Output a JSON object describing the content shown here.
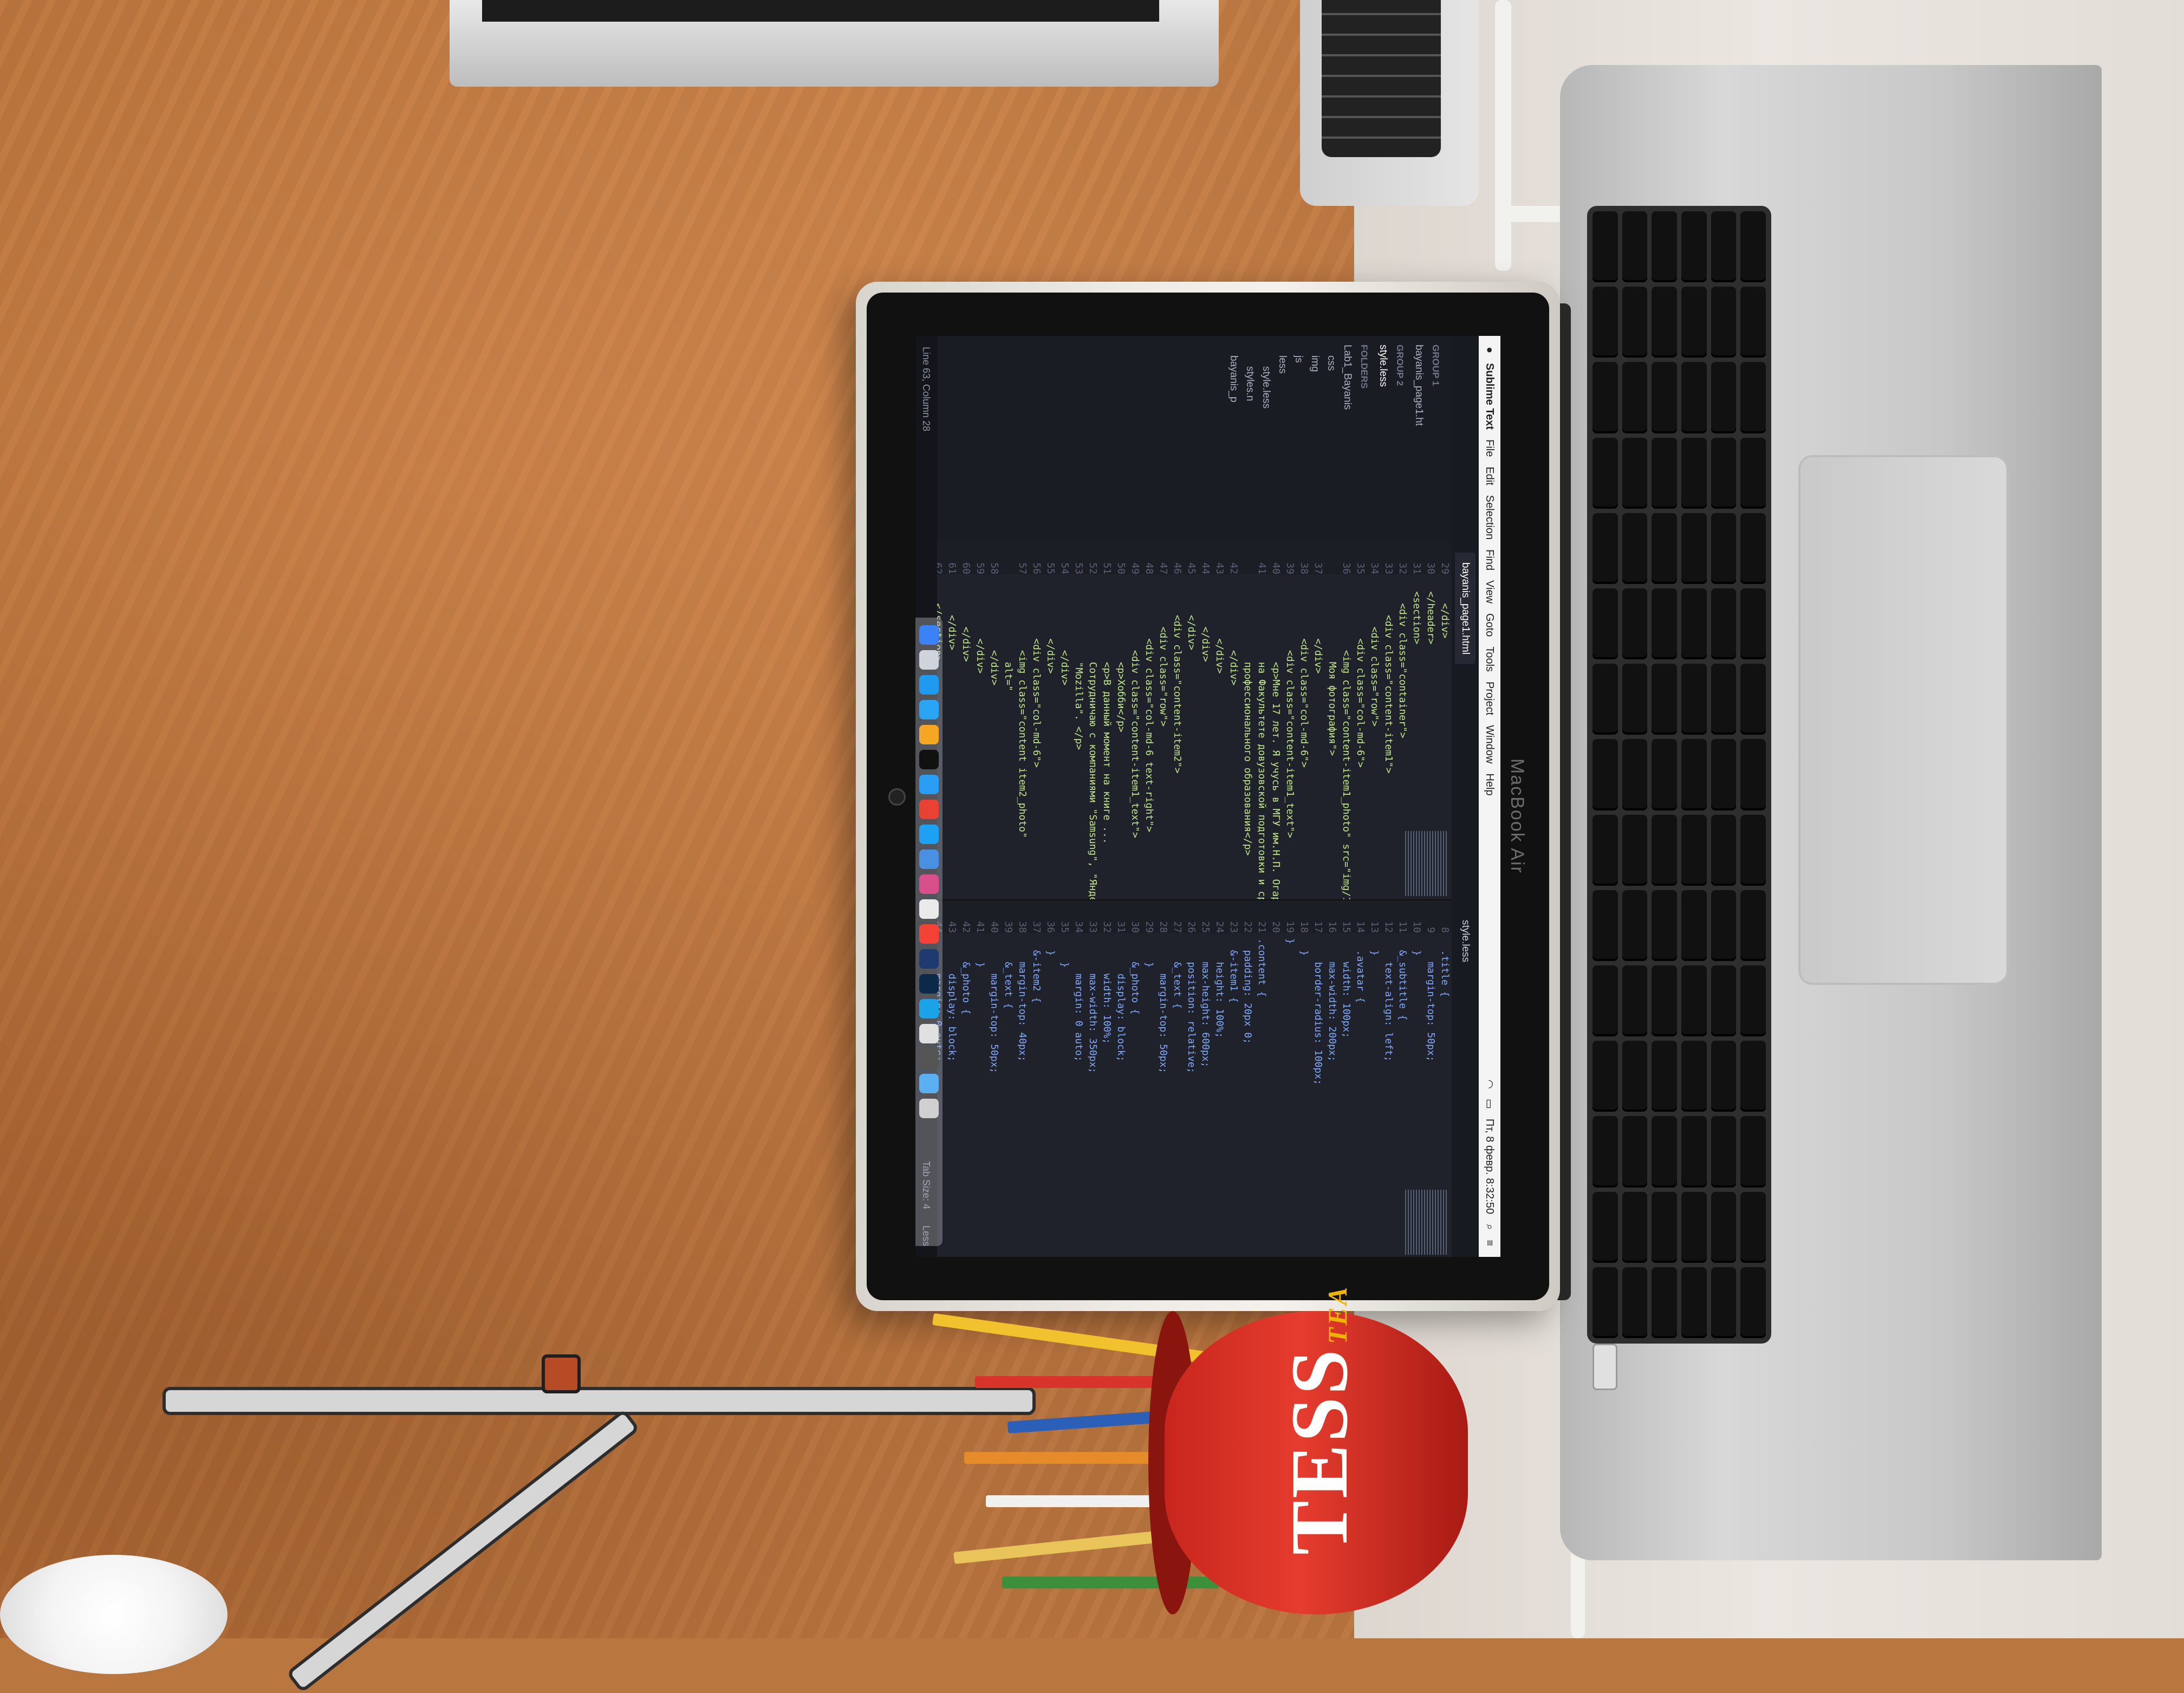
{
  "screen": {
    "menubar": {
      "app_name": "Sublime Text",
      "menus": [
        "File",
        "Edit",
        "Selection",
        "Find",
        "View",
        "Goto",
        "Tools",
        "Project",
        "Window",
        "Help"
      ],
      "clock": "Пт, 8 февр. 8:32:50"
    },
    "tabs": [
      {
        "label": "bayanis_page1.html",
        "active": true
      },
      {
        "label": "style.less",
        "active": false
      }
    ],
    "sidebar": {
      "group1_header": "GROUP 1",
      "group1_file": "bayanis_page1.ht",
      "group2_header": "GROUP 2",
      "group2_file": "style.less",
      "folders_header": "FOLDERS",
      "project_folder": "Lab1_Bayanis",
      "items": [
        "css",
        "img",
        "js",
        "less",
        "style.less",
        "styles.n",
        "bayanis_p"
      ]
    },
    "html_gutter": [
      "29",
      "30",
      "31",
      "32",
      "33",
      "34",
      "35",
      "36",
      "",
      "37",
      "38",
      "39",
      "40",
      "41",
      "",
      "42",
      "43",
      "44",
      "45",
      "46",
      "47",
      "48",
      "49",
      "50",
      "51",
      "52",
      "53",
      "54",
      "55",
      "56",
      "57",
      "",
      "58",
      "59",
      "60",
      "61",
      "62",
      "63"
    ],
    "html_code": [
      "    </div>",
      "  </header>",
      "  <section>",
      "    <div class=\"container\">",
      "      <div class=\"content-item1\">",
      "        <div class=\"row\">",
      "          <div class=\"col-md-6\">",
      "            <img class=\"content-item1_photo\" src=\"img/1.jpg\" alt=\"",
      "              Моя фотография\">",
      "          </div>",
      "          <div class=\"col-md-6\">",
      "            <div class=\"content-item1_text\">",
      "              <p>Мне 17 лет. Я учусь в МГУ им.Н.П. Огарева,",
      "              на Факультете довузовской подготовки и среднего",
      "              профессионального образования</p>",
      "            </div>",
      "          </div>",
      "        </div>",
      "      </div>",
      "      <div class=\"content-item2\">",
      "        <div class=\"row\">",
      "          <div class=\"col-md-6 text-right\">",
      "            <div class=\"content-item1_text\">",
      "              <p>Хобби</p>",
      "              <p>В данный момент на книге ...",
      "              Сотрудничаю с компаниями \"Samsung\", \"Яндекс\",",
      "              \"Mozilla\". </p>",
      "            </div>",
      "          </div>",
      "          <div class=\"col-md-6\">",
      "            <img class=\"content item2_photo\"",
      "              alt=\"",
      "            </div>",
      "          </div>",
      "        </div>",
      "      </div>",
      "    </section>",
      "  </body>"
    ],
    "less_gutter": [
      "8",
      "9",
      "10",
      "11",
      "12",
      "13",
      "14",
      "15",
      "16",
      "17",
      "18",
      "19",
      "20",
      "21",
      "22",
      "23",
      "24",
      "25",
      "26",
      "27",
      "28",
      "29",
      "30",
      "31",
      "32",
      "33",
      "34",
      "35",
      "36",
      "37",
      "38",
      "39",
      "40",
      "41",
      "42",
      "43",
      "44",
      "45",
      "46",
      "47",
      "48"
    ],
    "less_code": [
      "  .title {",
      "    margin-top: 50px;",
      "  }",
      "  &_subtitle {",
      "    text-align: left;",
      "  }",
      "  .avatar {",
      "    width: 100px;",
      "    max-width: 200px;",
      "    border-radius: 100px;",
      "  }",
      "}",
      "",
      ".content {",
      "  padding: 20px 0;",
      "  &-item1 {",
      "    height: 100%;",
      "    max-height: 600px;",
      "    position: relative;",
      "    &_text {",
      "      margin-top: 50px;",
      "    }",
      "    &_photo {",
      "      display: block;",
      "      width: 100%;",
      "      max-width: 350px;",
      "      margin: 0 auto;",
      "    }",
      "  }",
      "  &-item2 {",
      "    margin-top: 40px;",
      "    &_text {",
      "      margin-top: 50px;",
      "    }",
      "    &_photo {",
      "      display: block;",
      "      margin: 0 auto;",
      "      width: 100%;",
      "      max-width: 350px;",
      "    }",
      "  }",
      "}"
    ],
    "statusbar": {
      "left": "Line 63, Column 28",
      "middle": "Tab Size: 4",
      "right": "Less"
    }
  },
  "scene": {
    "laptop_brand": "MacBook Air",
    "mug_brand": "TESS",
    "mug_sub": "TEA"
  }
}
